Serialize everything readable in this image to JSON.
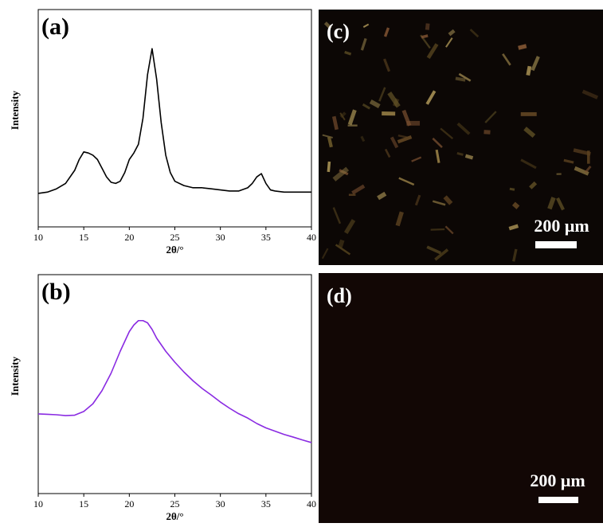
{
  "chart_data": [
    {
      "type": "line",
      "annotation": "(a)",
      "x_label": "2θ/°",
      "y_label": "Intensity",
      "xlim": [
        10,
        40
      ],
      "xticks": [
        10,
        15,
        20,
        25,
        30,
        35,
        40
      ],
      "ylim": [
        0,
        100
      ],
      "series": [
        {
          "color": "#000000",
          "x": [
            10,
            11,
            12,
            13,
            14,
            14.5,
            15,
            15.5,
            16,
            16.5,
            17,
            17.5,
            18,
            18.5,
            19,
            19.5,
            20,
            20.5,
            21,
            21.5,
            22,
            22.5,
            23,
            23.5,
            24,
            24.5,
            25,
            26,
            27,
            28,
            29,
            30,
            31,
            32,
            33,
            33.5,
            34,
            34.5,
            35,
            35.5,
            36,
            37,
            38,
            39,
            40
          ],
          "values": [
            15.4,
            16,
            17.5,
            20,
            26,
            31,
            34.5,
            34,
            33,
            31,
            27,
            23,
            20.5,
            20,
            21,
            25,
            31,
            34,
            38,
            50,
            70,
            82,
            68,
            48,
            33,
            25,
            21,
            19,
            18,
            18,
            17.5,
            17,
            16.5,
            16.5,
            18,
            20,
            23,
            24.5,
            20,
            17,
            16.5,
            16,
            16,
            16,
            16
          ]
        }
      ]
    },
    {
      "type": "line",
      "annotation": "(b)",
      "x_label": "2θ/°",
      "y_label": "Intensity",
      "xlim": [
        10,
        40
      ],
      "xticks": [
        10,
        15,
        20,
        25,
        30,
        35,
        40
      ],
      "ylim": [
        0,
        100
      ],
      "series": [
        {
          "color": "#8a2be2",
          "x": [
            10,
            11,
            12,
            13,
            14,
            15,
            16,
            17,
            18,
            19,
            20,
            20.5,
            21,
            21.5,
            22,
            22.5,
            23,
            24,
            25,
            26,
            27,
            28,
            29,
            30,
            31,
            32,
            33,
            34,
            35,
            36,
            37,
            38,
            39,
            40
          ],
          "values": [
            36.4,
            36.2,
            36,
            35.6,
            35.8,
            37.5,
            41,
            47,
            55,
            65,
            74,
            77,
            79,
            79,
            78,
            75,
            71,
            65,
            60,
            55.5,
            51.5,
            48,
            45,
            41.8,
            39,
            36.5,
            34.5,
            32,
            30,
            28.5,
            27,
            25.8,
            24.5,
            23.3
          ]
        }
      ]
    }
  ],
  "images": [
    {
      "label": "(c)",
      "scale_bar": "200 μm"
    },
    {
      "label": "(d)",
      "scale_bar": "200 μm"
    }
  ]
}
